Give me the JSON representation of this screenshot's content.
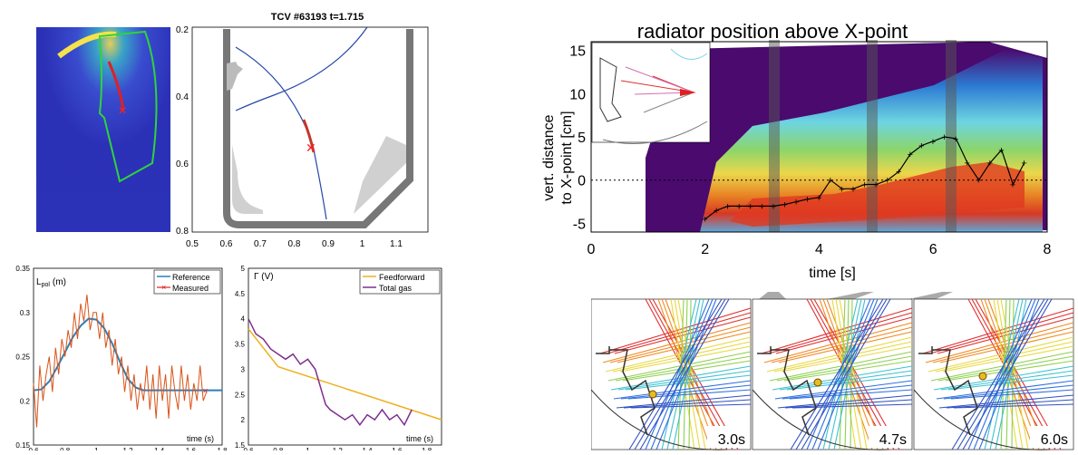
{
  "top_left": {
    "image_label": "colormap-with-chord-fan",
    "shot_title": "TCV #63193 t=1.715",
    "y_ticks": [
      "0.2",
      "0.4",
      "0.6",
      "0.8"
    ],
    "x_ticks": [
      "0.5",
      "0.6",
      "0.7",
      "0.8",
      "0.9",
      "1",
      "1.1"
    ]
  },
  "bottom_left": {
    "ylabel": "L",
    "ylabel_sub": "pol",
    "ylabel_unit": "(m)",
    "xlabel": "time (s)",
    "y_ticks": [
      "0.15",
      "0.2",
      "0.25",
      "0.3",
      "0.35"
    ],
    "x_ticks": [
      "0.6",
      "0.8",
      "1",
      "1.2",
      "1.4",
      "1.6",
      "1.8"
    ]
  },
  "bottom_mid": {
    "ylabel": "Γ (V)",
    "xlabel": "time (s)",
    "y_ticks": [
      "1.5",
      "2",
      "2.5",
      "3",
      "3.5",
      "4",
      "4.5",
      "5"
    ],
    "x_ticks": [
      "0.6",
      "0.8",
      "1",
      "1.2",
      "1.4",
      "1.6",
      "1.8"
    ]
  },
  "right": {
    "title": "radiator position above X-point",
    "ylabel_line1": "vert. distance",
    "ylabel_line2": "to X-point [cm]",
    "xlabel": "time [s]",
    "y_ticks": [
      "15",
      "10",
      "5",
      "0",
      "-5"
    ],
    "x_ticks": [
      "0",
      "2",
      "4",
      "6",
      "8"
    ]
  },
  "snapshots": [
    {
      "label": "3.0s"
    },
    {
      "label": "4.7s"
    },
    {
      "label": "6.0s"
    }
  ],
  "chart_data": [
    {
      "type": "line",
      "id": "lpol",
      "xlim": [
        0.6,
        1.8
      ],
      "ylim": [
        0.15,
        0.35
      ],
      "series": [
        {
          "name": "Reference",
          "color": "#2c7fb8",
          "x": [
            0.6,
            0.65,
            0.7,
            0.75,
            0.8,
            0.85,
            0.9,
            0.95,
            1.0,
            1.05,
            1.1,
            1.15,
            1.2,
            1.25,
            1.3,
            1.35,
            1.4,
            1.5,
            1.6,
            1.7,
            1.8
          ],
          "y": [
            0.212,
            0.213,
            0.222,
            0.238,
            0.255,
            0.272,
            0.285,
            0.293,
            0.292,
            0.282,
            0.265,
            0.244,
            0.225,
            0.215,
            0.212,
            0.212,
            0.212,
            0.212,
            0.212,
            0.212,
            0.212
          ]
        },
        {
          "name": "Measured",
          "color": "#d95319",
          "x": [
            0.6,
            0.62,
            0.64,
            0.66,
            0.68,
            0.7,
            0.72,
            0.74,
            0.76,
            0.78,
            0.8,
            0.82,
            0.84,
            0.86,
            0.88,
            0.9,
            0.92,
            0.94,
            0.96,
            0.98,
            1.0,
            1.02,
            1.04,
            1.06,
            1.08,
            1.1,
            1.12,
            1.14,
            1.16,
            1.18,
            1.2,
            1.22,
            1.24,
            1.26,
            1.28,
            1.3,
            1.32,
            1.34,
            1.36,
            1.38,
            1.4,
            1.42,
            1.44,
            1.46,
            1.48,
            1.5,
            1.52,
            1.54,
            1.56,
            1.58,
            1.6,
            1.62,
            1.64,
            1.66,
            1.68,
            1.7
          ],
          "y": [
            0.22,
            0.17,
            0.24,
            0.2,
            0.23,
            0.25,
            0.21,
            0.26,
            0.23,
            0.27,
            0.25,
            0.28,
            0.26,
            0.3,
            0.27,
            0.31,
            0.29,
            0.32,
            0.28,
            0.3,
            0.3,
            0.27,
            0.3,
            0.26,
            0.28,
            0.24,
            0.27,
            0.23,
            0.25,
            0.21,
            0.24,
            0.2,
            0.23,
            0.19,
            0.22,
            0.2,
            0.24,
            0.19,
            0.23,
            0.18,
            0.24,
            0.2,
            0.23,
            0.18,
            0.24,
            0.21,
            0.19,
            0.24,
            0.2,
            0.23,
            0.19,
            0.22,
            0.2,
            0.24,
            0.2,
            0.21
          ]
        }
      ]
    },
    {
      "type": "line",
      "id": "gas",
      "xlim": [
        0.6,
        1.9
      ],
      "ylim": [
        1.5,
        5
      ],
      "series": [
        {
          "name": "Feedforward",
          "color": "#edb120",
          "x": [
            0.6,
            0.8,
            1.9
          ],
          "y": [
            3.8,
            3.05,
            2.0
          ]
        },
        {
          "name": "Total gas",
          "color": "#7e2f8e",
          "x": [
            0.6,
            0.65,
            0.7,
            0.75,
            0.8,
            0.85,
            0.9,
            0.95,
            1.0,
            1.05,
            1.1,
            1.12,
            1.15,
            1.2,
            1.25,
            1.3,
            1.35,
            1.4,
            1.45,
            1.5,
            1.55,
            1.6,
            1.65,
            1.7
          ],
          "y": [
            4.0,
            3.7,
            3.6,
            3.4,
            3.3,
            3.2,
            3.3,
            3.1,
            3.2,
            3.0,
            2.5,
            2.3,
            2.2,
            2.1,
            2.0,
            2.1,
            1.9,
            2.1,
            2.0,
            2.2,
            2.0,
            2.1,
            1.9,
            2.2
          ]
        }
      ]
    },
    {
      "type": "line",
      "id": "radiator",
      "xlim": [
        0,
        8
      ],
      "ylim": [
        -6,
        16
      ],
      "series": [
        {
          "name": "",
          "color": "#000000",
          "x": [
            2.0,
            2.2,
            2.4,
            2.6,
            2.8,
            3.0,
            3.2,
            3.4,
            3.6,
            3.8,
            4.0,
            4.2,
            4.4,
            4.6,
            4.8,
            5.0,
            5.2,
            5.4,
            5.6,
            5.8,
            6.0,
            6.2,
            6.4,
            6.6,
            6.8,
            7.0,
            7.2,
            7.4,
            7.6
          ],
          "y": [
            -4.5,
            -3.5,
            -3,
            -3,
            -3,
            -3,
            -3,
            -2.8,
            -2.5,
            -2.2,
            -2,
            0,
            -1,
            -1,
            -0.5,
            -0.5,
            0,
            1,
            3,
            4,
            4.5,
            5,
            4.8,
            2,
            0,
            2,
            3.5,
            -0.5,
            2
          ]
        }
      ]
    }
  ]
}
